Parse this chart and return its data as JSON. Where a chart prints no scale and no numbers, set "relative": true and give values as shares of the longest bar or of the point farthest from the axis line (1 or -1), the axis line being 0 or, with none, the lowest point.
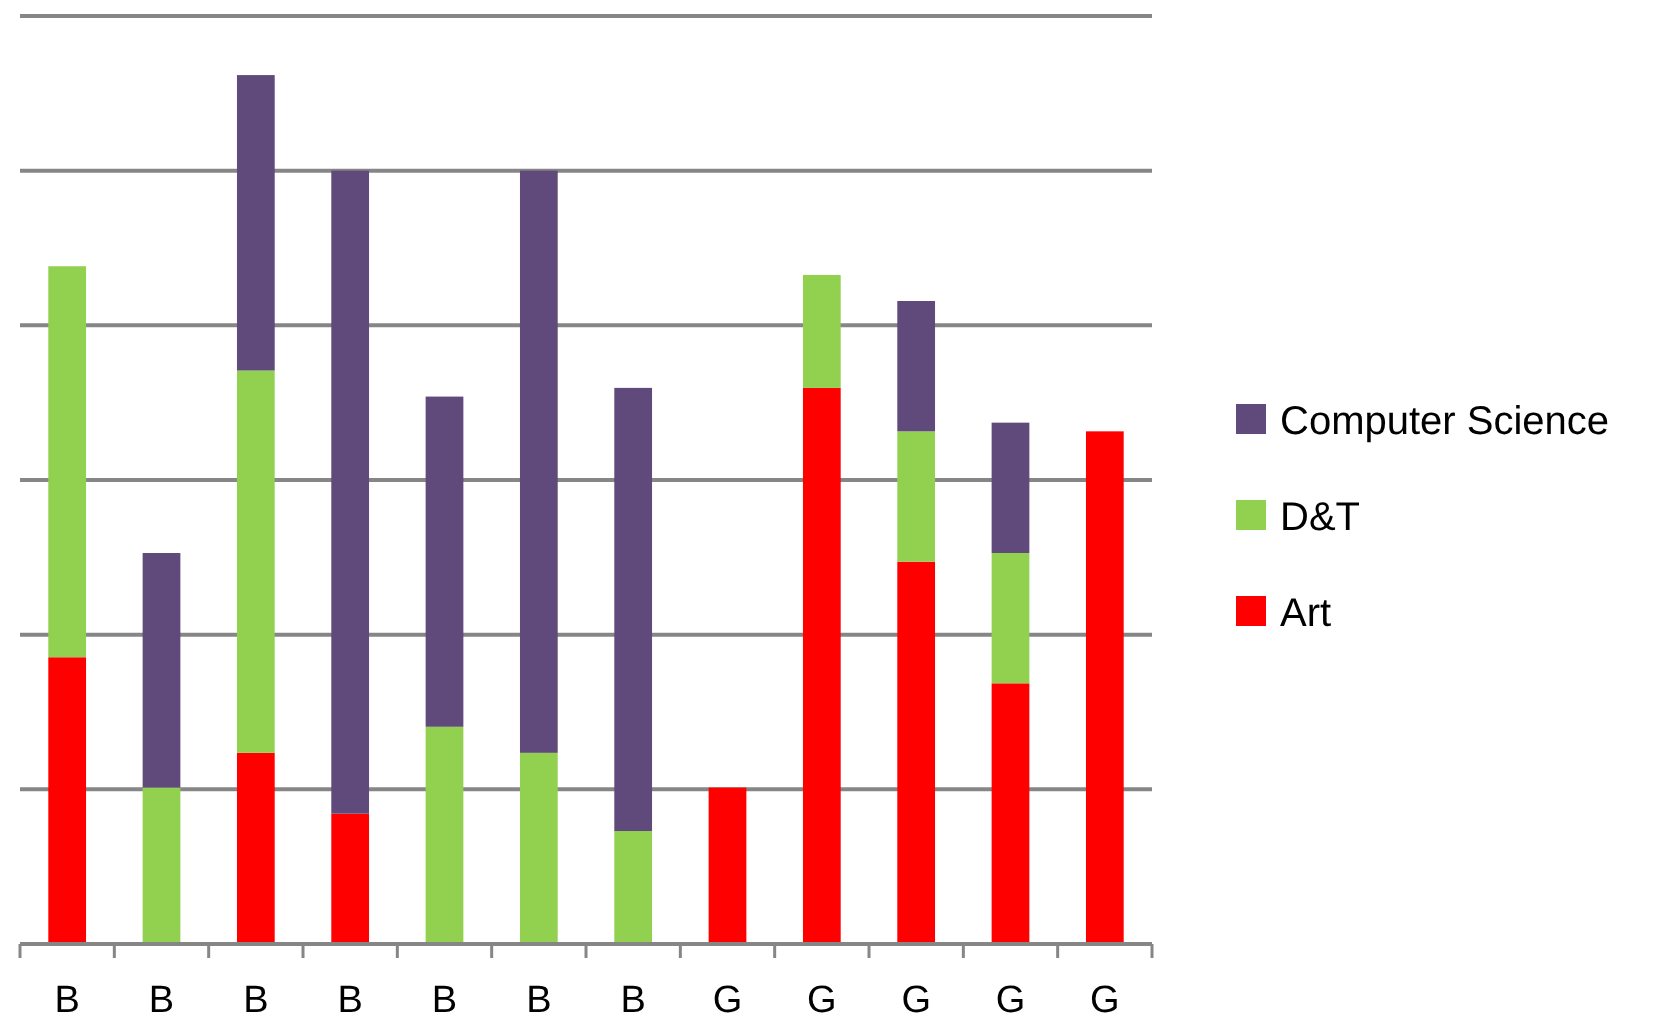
{
  "chart_data": {
    "type": "bar",
    "stacked": true,
    "relative": true,
    "grid": "y",
    "legend": "right",
    "categories": [
      "B",
      "B",
      "B",
      "B",
      "B",
      "B",
      "B",
      "G",
      "G",
      "G",
      "G",
      "G"
    ],
    "series": [
      {
        "name": "Art",
        "color": "#ff0000",
        "values": [
          0.33,
          0,
          0.22,
          0.15,
          0,
          0,
          0,
          0.18,
          0.64,
          0.44,
          0.3,
          0.59
        ]
      },
      {
        "name": "D&T",
        "color": "#92d050",
        "values": [
          0.45,
          0.18,
          0.44,
          0,
          0.25,
          0.22,
          0.13,
          0,
          0.13,
          0.15,
          0.15,
          0
        ]
      },
      {
        "name": "Computer Science",
        "color": "#604a7b",
        "values": [
          0,
          0.27,
          0.34,
          0.74,
          0.38,
          0.67,
          0.51,
          0,
          0,
          0.15,
          0.15,
          0
        ]
      }
    ]
  }
}
